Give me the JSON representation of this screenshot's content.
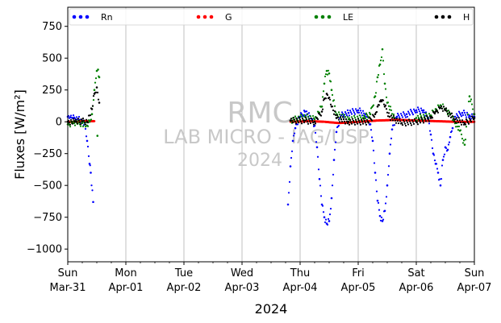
{
  "chart_data": {
    "type": "scatter",
    "ylabel": "Fluxes [W/m²]",
    "xlabel": "2024",
    "ylim": [
      -1100,
      900
    ],
    "yticks": [
      750,
      500,
      250,
      0,
      -250,
      -500,
      -750,
      -1000
    ],
    "x_range_days": [
      "2024-03-31",
      "2024-04-07"
    ],
    "xticks": [
      {
        "date": "2024-03-31",
        "day": "Sun",
        "label": "Mar-31"
      },
      {
        "date": "2024-04-01",
        "day": "Mon",
        "label": "Apr-01"
      },
      {
        "date": "2024-04-02",
        "day": "Tue",
        "label": "Apr-02"
      },
      {
        "date": "2024-04-03",
        "day": "Wed",
        "label": "Apr-03"
      },
      {
        "date": "2024-04-04",
        "day": "Thu",
        "label": "Apr-04"
      },
      {
        "date": "2024-04-05",
        "day": "Fri",
        "label": "Apr-05"
      },
      {
        "date": "2024-04-06",
        "day": "Sat",
        "label": "Apr-06"
      },
      {
        "date": "2024-04-07",
        "day": "Sun",
        "label": "Apr-07"
      }
    ],
    "grid_x": true,
    "legend_placement": "top",
    "watermark": [
      "RMC",
      "LAB MICRO - IAG/USP",
      "2024"
    ],
    "series": [
      {
        "name": "Rn",
        "color": "#0000ff",
        "points": [
          [
            "2024-03-31 00:00",
            40
          ],
          [
            "2024-03-31 01:00",
            35
          ],
          [
            "2024-03-31 02:00",
            30
          ],
          [
            "2024-03-31 03:00",
            25
          ],
          [
            "2024-03-31 04:00",
            20
          ],
          [
            "2024-03-31 05:00",
            15
          ],
          [
            "2024-03-31 06:00",
            10
          ],
          [
            "2024-03-31 07:00",
            -20
          ],
          [
            "2024-03-31 08:00",
            -150
          ],
          [
            "2024-03-31 09:00",
            -330
          ],
          [
            "2024-03-31 09:30",
            -400
          ],
          [
            "2024-03-31 10:30",
            -630
          ],
          [
            "2024-04-03 19:00",
            -650
          ],
          [
            "2024-04-03 20:00",
            -350
          ],
          [
            "2024-04-03 21:00",
            -150
          ],
          [
            "2024-04-03 22:00",
            -50
          ],
          [
            "2024-04-04 00:00",
            40
          ],
          [
            "2024-04-04 02:00",
            80
          ],
          [
            "2024-04-04 03:00",
            60
          ],
          [
            "2024-04-04 05:00",
            20
          ],
          [
            "2024-04-04 06:00",
            -30
          ],
          [
            "2024-04-04 07:00",
            -200
          ],
          [
            "2024-04-04 08:00",
            -450
          ],
          [
            "2024-04-04 09:00",
            -650
          ],
          [
            "2024-04-04 10:00",
            -750
          ],
          [
            "2024-04-04 11:00",
            -800
          ],
          [
            "2024-04-04 12:00",
            -780
          ],
          [
            "2024-04-04 13:00",
            -600
          ],
          [
            "2024-04-04 14:00",
            -300
          ],
          [
            "2024-04-04 15:00",
            -80
          ],
          [
            "2024-04-04 17:00",
            50
          ],
          [
            "2024-04-04 20:00",
            70
          ],
          [
            "2024-04-05 00:00",
            90
          ],
          [
            "2024-04-05 03:00",
            60
          ],
          [
            "2024-04-05 05:00",
            -20
          ],
          [
            "2024-04-05 06:00",
            -150
          ],
          [
            "2024-04-05 07:00",
            -400
          ],
          [
            "2024-04-05 08:00",
            -620
          ],
          [
            "2024-04-05 09:00",
            -740
          ],
          [
            "2024-04-05 10:00",
            -780
          ],
          [
            "2024-04-05 11:00",
            -700
          ],
          [
            "2024-04-05 12:00",
            -500
          ],
          [
            "2024-04-05 13:00",
            -250
          ],
          [
            "2024-04-05 14:00",
            -60
          ],
          [
            "2024-04-05 16:00",
            40
          ],
          [
            "2024-04-05 20:00",
            60
          ],
          [
            "2024-04-06 00:00",
            90
          ],
          [
            "2024-04-06 03:00",
            90
          ],
          [
            "2024-04-06 05:00",
            30
          ],
          [
            "2024-04-06 06:00",
            -100
          ],
          [
            "2024-04-06 07:00",
            -250
          ],
          [
            "2024-04-06 08:00",
            -330
          ],
          [
            "2024-04-06 09:00",
            -400
          ],
          [
            "2024-04-06 10:00",
            -500
          ],
          [
            "2024-04-06 11:00",
            -300
          ],
          [
            "2024-04-06 12:00",
            -200
          ],
          [
            "2024-04-06 13:00",
            -220
          ],
          [
            "2024-04-06 14:00",
            -120
          ],
          [
            "2024-04-06 15:00",
            -50
          ],
          [
            "2024-04-06 16:00",
            40
          ],
          [
            "2024-04-06 19:00",
            70
          ],
          [
            "2024-04-06 22:00",
            50
          ],
          [
            "2024-04-07 00:00",
            40
          ]
        ]
      },
      {
        "name": "G",
        "color": "#ff0000",
        "points": [
          [
            "2024-03-31 00:00",
            0
          ],
          [
            "2024-03-31 03:00",
            0
          ],
          [
            "2024-03-31 06:00",
            5
          ],
          [
            "2024-03-31 09:00",
            5
          ],
          [
            "2024-03-31 11:00",
            5
          ],
          [
            "2024-04-03 20:00",
            0
          ],
          [
            "2024-04-04 04:00",
            5
          ],
          [
            "2024-04-04 10:00",
            0
          ],
          [
            "2024-04-04 16:00",
            -10
          ],
          [
            "2024-04-05 00:00",
            0
          ],
          [
            "2024-04-05 08:00",
            10
          ],
          [
            "2024-04-05 16:00",
            15
          ],
          [
            "2024-04-06 00:00",
            10
          ],
          [
            "2024-04-06 08:00",
            5
          ],
          [
            "2024-04-06 16:00",
            0
          ],
          [
            "2024-04-07 00:00",
            0
          ]
        ]
      },
      {
        "name": "LE",
        "color": "#008000",
        "points": [
          [
            "2024-03-31 00:00",
            -20
          ],
          [
            "2024-03-31 02:00",
            -10
          ],
          [
            "2024-03-31 04:00",
            -15
          ],
          [
            "2024-03-31 06:00",
            -10
          ],
          [
            "2024-03-31 08:00",
            -30
          ],
          [
            "2024-03-31 09:00",
            0
          ],
          [
            "2024-03-31 10:00",
            60
          ],
          [
            "2024-03-31 11:00",
            250
          ],
          [
            "2024-03-31 12:00",
            400
          ],
          [
            "2024-03-31 12:30",
            410
          ],
          [
            "2024-03-31 13:00",
            350
          ],
          [
            "2024-03-31 12:15",
            -110
          ],
          [
            "2024-04-03 20:00",
            10
          ],
          [
            "2024-04-04 02:00",
            40
          ],
          [
            "2024-04-04 06:00",
            20
          ],
          [
            "2024-04-04 09:00",
            120
          ],
          [
            "2024-04-04 10:00",
            300
          ],
          [
            "2024-04-04 11:00",
            400
          ],
          [
            "2024-04-04 12:00",
            380
          ],
          [
            "2024-04-04 13:00",
            250
          ],
          [
            "2024-04-04 15:00",
            60
          ],
          [
            "2024-04-04 20:00",
            20
          ],
          [
            "2024-04-05 02:00",
            30
          ],
          [
            "2024-04-05 05:00",
            60
          ],
          [
            "2024-04-05 07:00",
            200
          ],
          [
            "2024-04-05 08:00",
            350
          ],
          [
            "2024-04-05 09:00",
            450
          ],
          [
            "2024-04-05 10:00",
            570
          ],
          [
            "2024-04-05 11:00",
            300
          ],
          [
            "2024-04-05 12:00",
            150
          ],
          [
            "2024-04-05 15:00",
            30
          ],
          [
            "2024-04-06 00:00",
            30
          ],
          [
            "2024-04-06 06:00",
            50
          ],
          [
            "2024-04-06 08:00",
            100
          ],
          [
            "2024-04-06 10:00",
            130
          ],
          [
            "2024-04-06 12:00",
            100
          ],
          [
            "2024-04-06 14:00",
            60
          ],
          [
            "2024-04-06 18:00",
            -70
          ],
          [
            "2024-04-06 20:00",
            -180
          ],
          [
            "2024-04-06 22:00",
            200
          ],
          [
            "2024-04-07 00:00",
            60
          ]
        ]
      },
      {
        "name": "H",
        "color": "#000000",
        "points": [
          [
            "2024-03-31 00:00",
            0
          ],
          [
            "2024-03-31 03:00",
            0
          ],
          [
            "2024-03-31 06:00",
            5
          ],
          [
            "2024-03-31 08:00",
            0
          ],
          [
            "2024-03-31 10:00",
            100
          ],
          [
            "2024-03-31 11:00",
            220
          ],
          [
            "2024-03-31 12:00",
            270
          ],
          [
            "2024-03-31 13:00",
            150
          ],
          [
            "2024-04-03 20:00",
            10
          ],
          [
            "2024-04-04 02:00",
            10
          ],
          [
            "2024-04-04 06:00",
            0
          ],
          [
            "2024-04-04 09:00",
            80
          ],
          [
            "2024-04-04 10:00",
            180
          ],
          [
            "2024-04-04 11:00",
            220
          ],
          [
            "2024-04-04 12:00",
            190
          ],
          [
            "2024-04-04 13:00",
            120
          ],
          [
            "2024-04-04 15:00",
            30
          ],
          [
            "2024-04-04 20:00",
            0
          ],
          [
            "2024-04-05 04:00",
            0
          ],
          [
            "2024-04-05 07:00",
            60
          ],
          [
            "2024-04-05 08:00",
            120
          ],
          [
            "2024-04-05 09:00",
            160
          ],
          [
            "2024-04-05 10:00",
            170
          ],
          [
            "2024-04-05 11:00",
            120
          ],
          [
            "2024-04-05 13:00",
            40
          ],
          [
            "2024-04-05 18:00",
            -10
          ],
          [
            "2024-04-06 00:00",
            0
          ],
          [
            "2024-04-06 06:00",
            30
          ],
          [
            "2024-04-06 08:00",
            80
          ],
          [
            "2024-04-06 10:00",
            110
          ],
          [
            "2024-04-06 12:00",
            90
          ],
          [
            "2024-04-06 16:00",
            20
          ],
          [
            "2024-04-06 20:00",
            -10
          ],
          [
            "2024-04-07 00:00",
            30
          ]
        ]
      }
    ]
  }
}
